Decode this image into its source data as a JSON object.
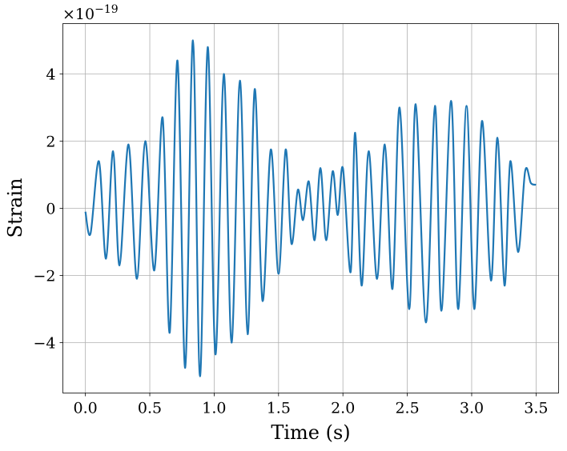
{
  "chart_data": {
    "type": "line",
    "title": "",
    "xlabel": "Time (s)",
    "ylabel": "Strain",
    "offset_label": {
      "base": "×10",
      "exponent": "−19"
    },
    "xlim": [
      -0.175,
      3.675
    ],
    "ylim": [
      -5.5,
      5.5
    ],
    "xticks": [
      0.0,
      0.5,
      1.0,
      1.5,
      2.0,
      2.5,
      3.0,
      3.5
    ],
    "xtick_labels": [
      "0.0",
      "0.5",
      "1.0",
      "1.5",
      "2.0",
      "2.5",
      "3.0",
      "3.5"
    ],
    "yticks": [
      -4,
      -2,
      0,
      2,
      4
    ],
    "ytick_labels": [
      "−4",
      "−2",
      "0",
      "2",
      "4"
    ],
    "grid": true,
    "legend": "none",
    "series": [
      {
        "color": "#1f77b4",
        "x": [
          0.0,
          0.04,
          0.105,
          0.16,
          0.215,
          0.265,
          0.335,
          0.4,
          0.465,
          0.535,
          0.6,
          0.655,
          0.715,
          0.775,
          0.835,
          0.89,
          0.95,
          1.01,
          1.075,
          1.135,
          1.2,
          1.26,
          1.315,
          1.375,
          1.44,
          1.5,
          1.555,
          1.6,
          1.65,
          1.69,
          1.735,
          1.78,
          1.825,
          1.87,
          1.92,
          1.96,
          2.0,
          2.06,
          2.095,
          2.145,
          2.2,
          2.265,
          2.325,
          2.385,
          2.44,
          2.515,
          2.565,
          2.645,
          2.715,
          2.765,
          2.84,
          2.895,
          2.96,
          3.02,
          3.08,
          3.15,
          3.2,
          3.255,
          3.3,
          3.36,
          3.415,
          3.46,
          3.5
        ],
        "y": [
          -0.1,
          -0.75,
          1.4,
          -1.5,
          1.7,
          -1.7,
          1.9,
          -2.1,
          2.0,
          -1.85,
          2.7,
          -3.7,
          4.4,
          -4.75,
          5.0,
          -5.0,
          4.8,
          -4.35,
          4.0,
          -4.0,
          3.8,
          -3.75,
          3.55,
          -2.75,
          1.75,
          -1.95,
          1.75,
          -1.05,
          0.55,
          -0.35,
          0.8,
          -0.95,
          1.2,
          -0.95,
          1.1,
          -0.2,
          1.2,
          -1.9,
          2.25,
          -2.3,
          1.7,
          -2.1,
          1.9,
          -2.4,
          3.0,
          -3.0,
          3.1,
          -3.4,
          3.05,
          -3.05,
          3.2,
          -3.0,
          3.05,
          -3.0,
          2.6,
          -2.15,
          2.1,
          -2.3,
          1.4,
          -1.3,
          1.1,
          0.75,
          0.7
        ]
      }
    ]
  }
}
